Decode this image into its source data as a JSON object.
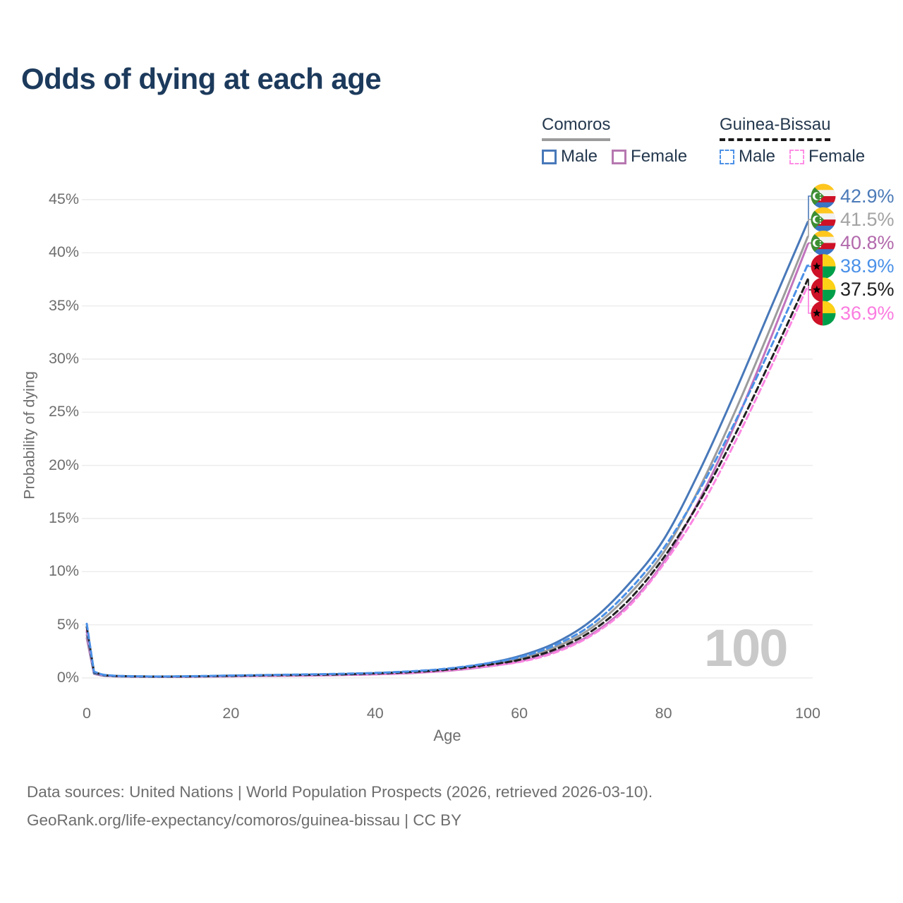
{
  "title": "Odds of dying at each age",
  "watermark": "100",
  "axes": {
    "y_title": "Probability of dying",
    "x_title": "Age",
    "y_ticks": [
      {
        "value": 0,
        "label": "0%"
      },
      {
        "value": 5,
        "label": "5%"
      },
      {
        "value": 10,
        "label": "10%"
      },
      {
        "value": 15,
        "label": "15%"
      },
      {
        "value": 20,
        "label": "20%"
      },
      {
        "value": 25,
        "label": "25%"
      },
      {
        "value": 30,
        "label": "30%"
      },
      {
        "value": 35,
        "label": "35%"
      },
      {
        "value": 40,
        "label": "40%"
      },
      {
        "value": 45,
        "label": "45%"
      }
    ],
    "x_ticks": [
      {
        "value": 0,
        "label": "0"
      },
      {
        "value": 20,
        "label": "20"
      },
      {
        "value": 40,
        "label": "40"
      },
      {
        "value": 60,
        "label": "60"
      },
      {
        "value": 80,
        "label": "80"
      },
      {
        "value": 100,
        "label": "100"
      }
    ]
  },
  "legend": {
    "groups": [
      {
        "country": "Comoros",
        "underline": "solid",
        "underline_color": "#9c9c9c",
        "items": [
          {
            "label": "Male",
            "color": "#4878b9",
            "dashed": false
          },
          {
            "label": "Female",
            "color": "#b678b0",
            "dashed": false
          }
        ]
      },
      {
        "country": "Guinea-Bissau",
        "underline": "dashed",
        "underline_color": "#1a1a1a",
        "items": [
          {
            "label": "Male",
            "color": "#4b90e6",
            "dashed": true
          },
          {
            "label": "Female",
            "color": "#ff8de5",
            "dashed": true
          }
        ]
      }
    ]
  },
  "end_labels": [
    {
      "series": "comoros-male",
      "value": "42.9%",
      "color": "#4b7ab8",
      "flag": "comoros",
      "line_end_percent": 42.9
    },
    {
      "series": "comoros-both",
      "value": "41.5%",
      "color": "#a3a3a3",
      "flag": "comoros",
      "line_end_percent": 41.5
    },
    {
      "series": "comoros-female",
      "value": "40.8%",
      "color": "#b269ac",
      "flag": "comoros",
      "line_end_percent": 40.8
    },
    {
      "series": "guinea-bissau-male",
      "value": "38.9%",
      "color": "#4a90e8",
      "flag": "guinea-bissau",
      "line_end_percent": 38.9
    },
    {
      "series": "guinea-bissau-both",
      "value": "37.5%",
      "color": "#1f1f1f",
      "flag": "guinea-bissau",
      "line_end_percent": 37.5
    },
    {
      "series": "guinea-bissau-female",
      "value": "36.9%",
      "color": "#fb7ce0",
      "flag": "guinea-bissau",
      "line_end_percent": 36.9
    }
  ],
  "footer": {
    "line1": "Data sources: United Nations | World Population Prospects (2026, retrieved 2026-03-10).",
    "line2": "GeoRank.org/life-expectancy/comoros/guinea-bissau | CC BY"
  },
  "chart_data": {
    "type": "line",
    "title": "Odds of dying at each age",
    "xlabel": "Age",
    "ylabel": "Probability of dying",
    "x_range": [
      0,
      100
    ],
    "y_range_percent": [
      0,
      45
    ],
    "grid": "horizontal",
    "legend_position": "top-right",
    "ages": [
      0,
      1,
      2,
      3,
      5,
      8,
      10,
      15,
      20,
      25,
      30,
      35,
      40,
      45,
      50,
      55,
      60,
      65,
      70,
      75,
      80,
      85,
      90,
      95,
      100
    ],
    "series": [
      {
        "id": "comoros-male",
        "country": "Comoros",
        "sex": "Male",
        "color": "#4878b9",
        "dashed": false,
        "end_value_percent": 42.9,
        "values_percent": [
          4.35,
          0.45,
          0.28,
          0.2,
          0.15,
          0.13,
          0.12,
          0.15,
          0.21,
          0.26,
          0.3,
          0.36,
          0.45,
          0.6,
          0.85,
          1.3,
          2.05,
          3.3,
          5.4,
          8.7,
          13.0,
          19.5,
          27.0,
          35.0,
          42.9
        ]
      },
      {
        "id": "comoros-both",
        "country": "Comoros",
        "sex": "Both sexes",
        "color": "#9c9c9c",
        "dashed": false,
        "end_value_percent": 41.5,
        "values_percent": [
          4.05,
          0.42,
          0.26,
          0.19,
          0.14,
          0.12,
          0.11,
          0.13,
          0.18,
          0.22,
          0.26,
          0.31,
          0.4,
          0.53,
          0.76,
          1.15,
          1.8,
          2.9,
          4.7,
          7.7,
          11.8,
          17.9,
          25.2,
          33.2,
          41.5
        ]
      },
      {
        "id": "comoros-female",
        "country": "Comoros",
        "sex": "Female",
        "color": "#c173bd",
        "dashed": false,
        "end_value_percent": 40.8,
        "values_percent": [
          3.75,
          0.39,
          0.24,
          0.18,
          0.13,
          0.11,
          0.1,
          0.12,
          0.15,
          0.19,
          0.22,
          0.27,
          0.34,
          0.46,
          0.67,
          1.03,
          1.55,
          2.5,
          4.1,
          6.8,
          10.9,
          16.8,
          24.0,
          32.2,
          40.8
        ]
      },
      {
        "id": "guinea-bissau-male",
        "country": "Guinea-Bissau",
        "sex": "Male",
        "color": "#4b90e6",
        "dashed": true,
        "end_value_percent": 38.9,
        "values_percent": [
          5.1,
          0.6,
          0.35,
          0.25,
          0.18,
          0.15,
          0.14,
          0.17,
          0.23,
          0.28,
          0.33,
          0.39,
          0.48,
          0.63,
          0.88,
          1.32,
          1.95,
          3.1,
          5.0,
          8.1,
          12.2,
          17.7,
          24.2,
          31.3,
          38.9
        ]
      },
      {
        "id": "guinea-bissau-both",
        "country": "Guinea-Bissau",
        "sex": "Both sexes",
        "color": "#1f1f1f",
        "dashed": true,
        "end_value_percent": 37.5,
        "values_percent": [
          4.8,
          0.56,
          0.33,
          0.23,
          0.17,
          0.14,
          0.13,
          0.15,
          0.2,
          0.25,
          0.29,
          0.34,
          0.43,
          0.56,
          0.79,
          1.18,
          1.7,
          2.7,
          4.4,
          7.2,
          11.3,
          16.6,
          23.0,
          30.1,
          37.5
        ]
      },
      {
        "id": "guinea-bissau-female",
        "country": "Guinea-Bissau",
        "sex": "Female",
        "color": "#fb86e2",
        "dashed": true,
        "end_value_percent": 36.9,
        "values_percent": [
          4.5,
          0.52,
          0.31,
          0.22,
          0.16,
          0.13,
          0.12,
          0.14,
          0.18,
          0.22,
          0.26,
          0.31,
          0.38,
          0.5,
          0.71,
          1.07,
          1.5,
          2.4,
          4.0,
          6.6,
          10.7,
          15.9,
          22.3,
          29.4,
          36.9
        ]
      }
    ]
  }
}
